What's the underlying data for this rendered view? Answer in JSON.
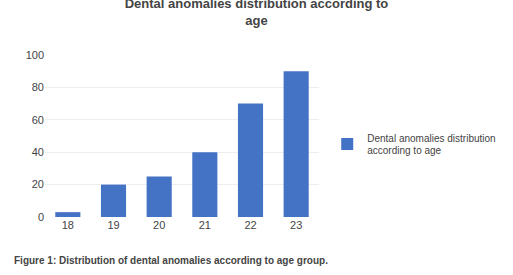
{
  "chart_data": {
    "type": "bar",
    "title": "Dental anomalies distribution according to\nage",
    "categories": [
      "18",
      "19",
      "20",
      "21",
      "22",
      "23"
    ],
    "series": [
      {
        "name": "Dental anomalies distribution\naccording to age",
        "color": "#4472C4",
        "values": [
          3,
          20,
          25,
          40,
          70,
          90
        ]
      }
    ],
    "ylim": [
      0,
      100
    ],
    "yticks": [
      0,
      20,
      40,
      60,
      80,
      100
    ],
    "grid": true,
    "legend": "right",
    "annotations": [
      "Figure 1: Distribution of dental anomalies according to age group."
    ]
  }
}
